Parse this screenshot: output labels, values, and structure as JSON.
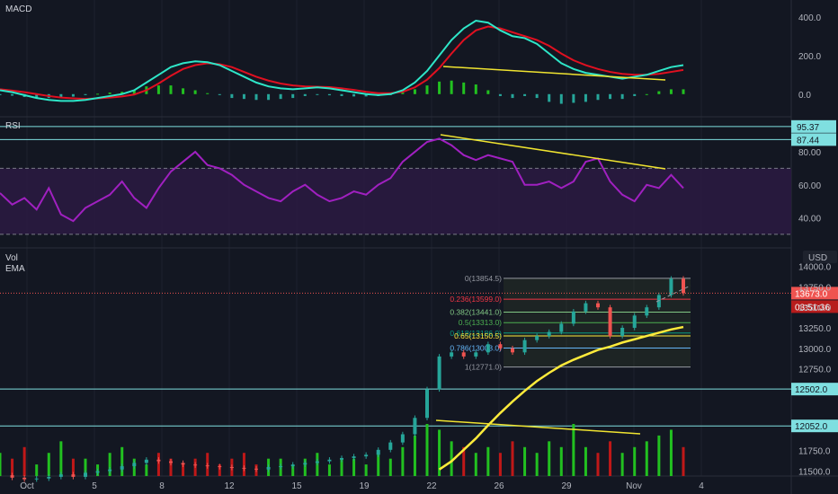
{
  "panes": {
    "macd": {
      "label": "MACD",
      "ticks": [
        "400.0",
        "200.0",
        "0.0"
      ],
      "tick_values": [
        400,
        200,
        0
      ]
    },
    "rsi": {
      "label": "RSI",
      "ticks": [
        "80.00",
        "60.00",
        "40.00"
      ],
      "tick_values": [
        80,
        60,
        40
      ],
      "band": [
        30,
        70
      ],
      "tags": [
        {
          "text": "95.37",
          "value": 95.37
        },
        {
          "text": "87.44",
          "value": 87.44
        }
      ]
    },
    "price": {
      "label_vol": "Vol",
      "label_ema": "EMA",
      "currency": "USD",
      "ticks": [
        "14000.0",
        "13750.0",
        "13500.0",
        "13250.0",
        "13000.0",
        "12750.0",
        "11750.0",
        "11500.0"
      ],
      "tick_values": [
        14000,
        13750,
        13500,
        13250,
        13000,
        12750,
        11750,
        11500
      ],
      "current_price": {
        "text": "13673.0",
        "value": 13673
      },
      "countdown": "03:51:36",
      "horizontal_levels": [
        {
          "text": "12502.0",
          "value": 12502
        },
        {
          "text": "12052.0",
          "value": 12052
        }
      ]
    }
  },
  "fib_levels": [
    {
      "label": "0(13854.5)",
      "ratio": "0",
      "value": 13854.5,
      "color": "#9598a1"
    },
    {
      "label": "0.236(13599.0)",
      "ratio": "0.236",
      "value": 13599.0,
      "color": "#f23645"
    },
    {
      "label": "0.382(13441.0)",
      "ratio": "0.382",
      "value": 13441.0,
      "color": "#81c784"
    },
    {
      "label": "0.5(13313.0)",
      "ratio": "0.5",
      "value": 13313.0,
      "color": "#4caf50"
    },
    {
      "label": "0.618(13186.0)",
      "ratio": "0.618",
      "value": 13186.0,
      "color": "#089981"
    },
    {
      "label": "0.65(13150.5)",
      "ratio": "0.65",
      "value": 13150.5,
      "color": "#ffeb3b"
    },
    {
      "label": "0.786(13003.0)",
      "ratio": "0.786",
      "value": 13003.0,
      "color": "#64b5f6"
    },
    {
      "label": "1(12771.0)",
      "ratio": "1",
      "value": 12771.0,
      "color": "#9598a1"
    }
  ],
  "x_axis": {
    "labels": [
      "Oct",
      "5",
      "8",
      "12",
      "15",
      "19",
      "22",
      "26",
      "29",
      "Nov",
      "4"
    ]
  },
  "colors": {
    "background": "#131722",
    "grid": "#1e222d",
    "macd_line": "#2ee6c8",
    "signal_line": "#e01020",
    "hist_up": "#26a69a",
    "hist_green": "#22c020",
    "rsi_line": "#a020c0",
    "rsi_band": "#2a1a40",
    "trendline": "#f0e430",
    "ema": "#ffeb3b",
    "level_line": "#7fdfe0",
    "candle_up": "#26a69a",
    "candle_down": "#ef5350",
    "vol_up": "#22c020",
    "vol_down": "#c01818"
  },
  "chart_data": [
    {
      "type": "line",
      "name": "MACD",
      "x": [
        0,
        5,
        10,
        15,
        20,
        25,
        30,
        35,
        40,
        45,
        50,
        55,
        60,
        65,
        70,
        75,
        80,
        85,
        90,
        95,
        100,
        105,
        110,
        115,
        120,
        125,
        130,
        135,
        140,
        145,
        150,
        155,
        160,
        165,
        170,
        175,
        180,
        185,
        190,
        195,
        200,
        205,
        210,
        215,
        220,
        225,
        230,
        235,
        240,
        245,
        250,
        255,
        260,
        265,
        270,
        275,
        280
      ],
      "series": [
        {
          "name": "MACD",
          "values": [
            20,
            10,
            -5,
            -20,
            -30,
            -35,
            -35,
            -30,
            -20,
            -10,
            0,
            20,
            60,
            100,
            140,
            160,
            170,
            165,
            150,
            120,
            90,
            60,
            40,
            30,
            25,
            30,
            35,
            30,
            20,
            10,
            0,
            -5,
            0,
            20,
            60,
            120,
            200,
            280,
            340,
            380,
            370,
            330,
            300,
            290,
            260,
            210,
            160,
            130,
            110,
            100,
            90,
            80,
            90,
            100,
            120,
            140,
            150
          ]
        },
        {
          "name": "Signal",
          "values": [
            25,
            18,
            10,
            0,
            -10,
            -18,
            -22,
            -25,
            -22,
            -18,
            -12,
            -2,
            20,
            55,
            95,
            130,
            150,
            160,
            155,
            140,
            115,
            90,
            70,
            55,
            45,
            40,
            38,
            36,
            30,
            22,
            12,
            5,
            5,
            12,
            35,
            75,
            135,
            210,
            280,
            330,
            350,
            340,
            320,
            300,
            280,
            250,
            210,
            175,
            150,
            130,
            115,
            105,
            100,
            100,
            105,
            115,
            125
          ]
        },
        {
          "name": "Histogram",
          "values": [
            -5,
            -8,
            -15,
            -20,
            -20,
            -17,
            -13,
            -5,
            2,
            8,
            12,
            22,
            40,
            45,
            45,
            30,
            20,
            5,
            -5,
            -20,
            -25,
            -30,
            -30,
            -25,
            -20,
            -10,
            -3,
            -6,
            -10,
            -12,
            -12,
            -10,
            -5,
            8,
            25,
            45,
            65,
            70,
            60,
            50,
            20,
            -10,
            -20,
            -10,
            -20,
            -40,
            -50,
            -45,
            -40,
            -30,
            -25,
            -25,
            -10,
            0,
            15,
            25,
            25
          ]
        }
      ]
    },
    {
      "type": "line",
      "name": "RSI",
      "x": [
        0,
        5,
        10,
        15,
        20,
        25,
        30,
        35,
        40,
        45,
        50,
        55,
        60,
        65,
        70,
        75,
        80,
        85,
        90,
        95,
        100,
        105,
        110,
        115,
        120,
        125,
        130,
        135,
        140,
        145,
        150,
        155,
        160,
        165,
        170,
        175,
        180,
        185,
        190,
        195,
        200,
        205,
        210,
        215,
        220,
        225,
        230,
        235,
        240,
        245,
        250,
        255,
        260,
        265,
        270,
        275,
        280
      ],
      "series": [
        {
          "name": "RSI",
          "values": [
            55,
            48,
            52,
            45,
            58,
            42,
            38,
            46,
            50,
            54,
            62,
            52,
            46,
            58,
            68,
            74,
            80,
            72,
            70,
            66,
            60,
            56,
            52,
            50,
            56,
            60,
            54,
            50,
            52,
            56,
            54,
            60,
            64,
            74,
            80,
            86,
            88,
            84,
            78,
            75,
            78,
            76,
            74,
            60,
            60,
            62,
            58,
            62,
            74,
            76,
            62,
            54,
            50,
            60,
            58,
            66,
            58
          ]
        }
      ],
      "ylim": [
        30,
        90
      ]
    },
    {
      "type": "bar",
      "name": "Price",
      "x": [
        0,
        5,
        10,
        15,
        20,
        25,
        30,
        35,
        40,
        45,
        50,
        55,
        60,
        65,
        70,
        75,
        80,
        85,
        90,
        95,
        100,
        105,
        110,
        115,
        120,
        125,
        130,
        135,
        140,
        145,
        150,
        155,
        160,
        165,
        170,
        175,
        180,
        185,
        190,
        195,
        200,
        205,
        210,
        215,
        220,
        225,
        230,
        235,
        240,
        245,
        250,
        255,
        260,
        265,
        270,
        275,
        280
      ],
      "series": [
        {
          "name": "Close",
          "values": [
            11450,
            11420,
            11400,
            11410,
            11430,
            11460,
            11430,
            11480,
            11500,
            11520,
            11560,
            11600,
            11640,
            11620,
            11600,
            11580,
            11570,
            11560,
            11550,
            11540,
            11530,
            11520,
            11550,
            11560,
            11580,
            11600,
            11620,
            11640,
            11660,
            11680,
            11700,
            11760,
            11850,
            11950,
            12150,
            12500,
            12900,
            12950,
            12900,
            12950,
            13050,
            13000,
            12950,
            13100,
            13150,
            13200,
            13300,
            13450,
            13550,
            13500,
            13150,
            13250,
            13400,
            13500,
            13650,
            13850,
            13673
          ]
        },
        {
          "name": "EMA",
          "values": [
            null,
            null,
            null,
            null,
            null,
            null,
            null,
            null,
            null,
            null,
            null,
            null,
            null,
            null,
            null,
            null,
            null,
            null,
            null,
            null,
            null,
            null,
            null,
            null,
            null,
            null,
            null,
            null,
            null,
            null,
            null,
            null,
            null,
            null,
            null,
            null,
            11520,
            11620,
            11760,
            11900,
            12060,
            12210,
            12350,
            12480,
            12600,
            12700,
            12790,
            12860,
            12920,
            12980,
            13020,
            13070,
            13110,
            13150,
            13190,
            13230,
            13260
          ]
        },
        {
          "name": "Volume",
          "values": [
            4,
            3,
            5,
            2,
            4,
            6,
            3,
            3,
            2,
            4,
            5,
            3,
            2,
            4,
            3,
            2,
            3,
            4,
            2,
            3,
            4,
            2,
            3,
            3,
            2,
            3,
            4,
            2,
            3,
            3,
            2,
            4,
            3,
            5,
            7,
            9,
            8,
            6,
            5,
            4,
            5,
            4,
            6,
            5,
            4,
            6,
            5,
            9,
            5,
            4,
            6,
            4,
            5,
            6,
            7,
            8,
            5
          ]
        }
      ]
    }
  ]
}
